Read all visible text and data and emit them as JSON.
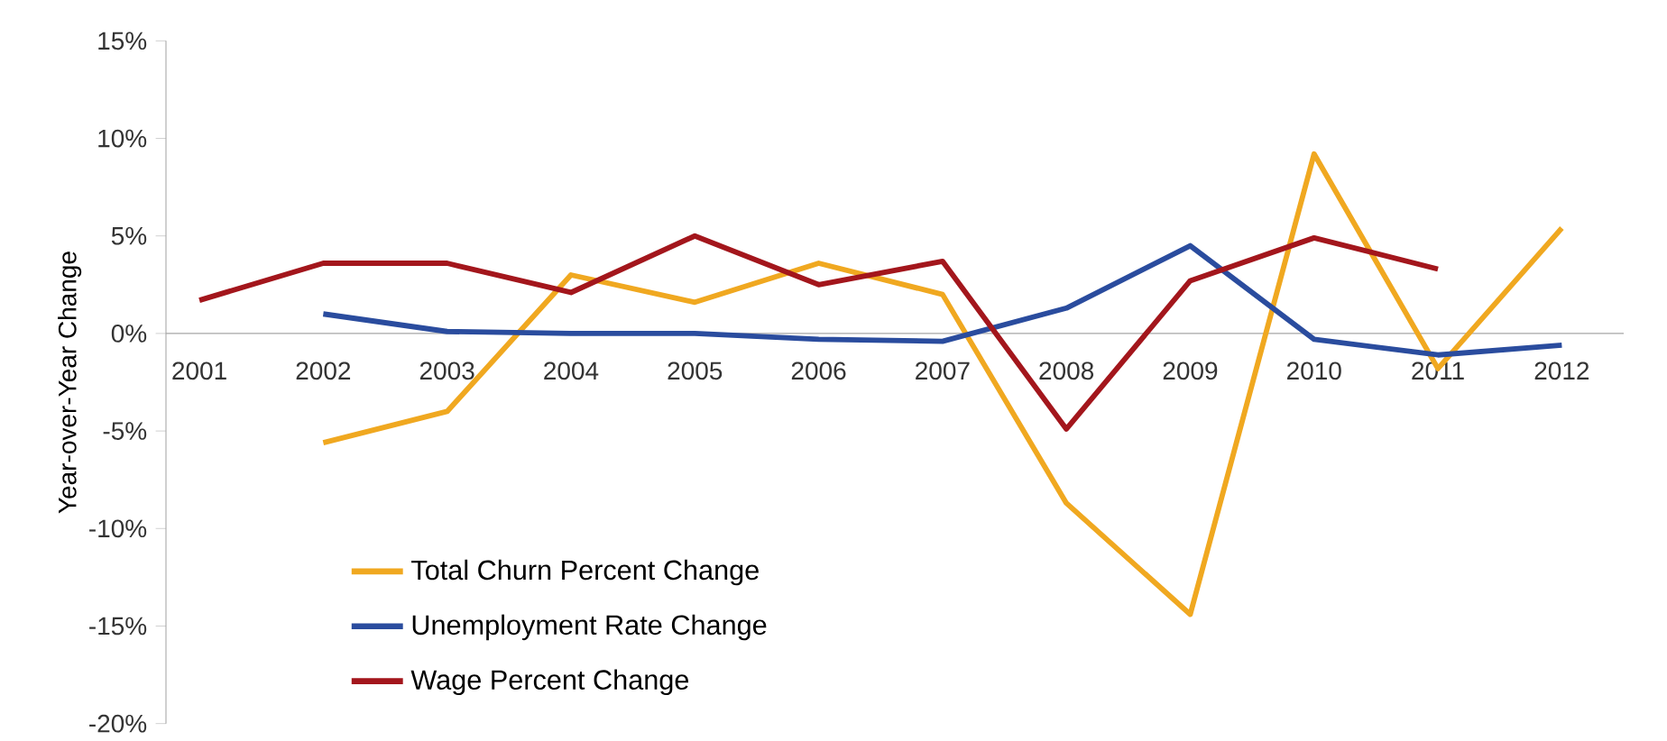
{
  "chart_data": {
    "type": "line",
    "ylabel": "Year-over-Year Change",
    "categories": [
      "2001",
      "2002",
      "2003",
      "2004",
      "2005",
      "2006",
      "2007",
      "2008",
      "2009",
      "2010",
      "2011",
      "2012"
    ],
    "series": [
      {
        "name": "Total Churn Percent Change",
        "color": "#f0a820",
        "values": [
          null,
          -5.6,
          -4.0,
          3.0,
          1.6,
          3.6,
          2.0,
          -8.7,
          -14.4,
          9.2,
          -1.8,
          5.4
        ]
      },
      {
        "name": "Unemployment Rate Change",
        "color": "#2a4c9e",
        "values": [
          null,
          1.0,
          0.1,
          0.0,
          0.0,
          -0.3,
          -0.4,
          1.3,
          4.5,
          -0.3,
          -1.1,
          -0.6
        ]
      },
      {
        "name": "Wage Percent Change",
        "color": "#a3161c",
        "values": [
          1.7,
          3.6,
          3.6,
          2.1,
          5.0,
          2.5,
          3.7,
          -4.9,
          2.7,
          4.9,
          3.3,
          null
        ]
      }
    ],
    "ylim": [
      -20,
      15
    ],
    "yticks": [
      {
        "value": -20,
        "label": "-20%"
      },
      {
        "value": -15,
        "label": "-15%"
      },
      {
        "value": -10,
        "label": "-10%"
      },
      {
        "value": -5,
        "label": "-5%"
      },
      {
        "value": 0,
        "label": "0%"
      },
      {
        "value": 5,
        "label": "5%"
      },
      {
        "value": 10,
        "label": "10%"
      },
      {
        "value": 15,
        "label": "15%"
      }
    ],
    "legend": "bottom left",
    "grid": false,
    "marker": "none",
    "line_style": "solid"
  }
}
